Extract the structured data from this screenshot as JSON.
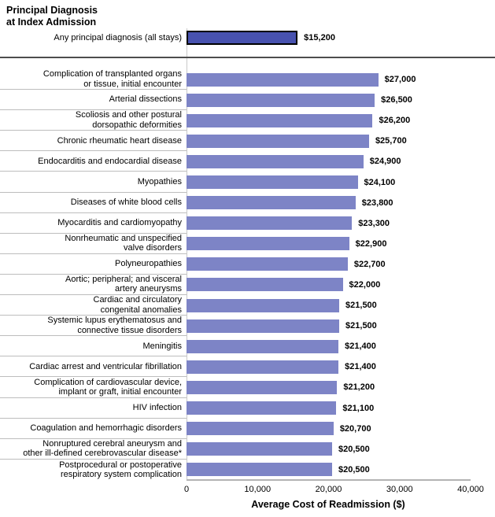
{
  "chart_data": {
    "type": "bar",
    "orientation": "horizontal",
    "title": "Principal Diagnosis at Index Admission",
    "title_lines": [
      "Principal Diagnosis",
      "at Index Admission"
    ],
    "xlabel": "Average Cost of Readmission ($)",
    "xlim": [
      0,
      40000
    ],
    "x_tick_labels": [
      "0",
      "10,000",
      "20,000",
      "30,000",
      "40,000"
    ],
    "grid": false,
    "legend": "none",
    "bar_color": "#7D84C6",
    "reference_bar": {
      "label": "Any principal diagnosis (all stays)",
      "value": 15200,
      "value_label": "$15,200",
      "fill_color": "#4852AF",
      "border_color": "#000000"
    },
    "categories": [
      "Complication of transplanted organs or tissue, initial encounter",
      "Arterial dissections",
      "Scoliosis and other postural dorsopathic deformities",
      "Chronic rheumatic heart disease",
      "Endocarditis and endocardial disease",
      "Myopathies",
      "Diseases of white blood cells",
      "Myocarditis and cardiomyopathy",
      "Nonrheumatic and unspecified valve disorders",
      "Polyneuropathies",
      "Aortic; peripheral; and visceral artery aneurysms",
      "Cardiac and circulatory congenital anomalies",
      "Systemic lupus erythematosus and connective tissue disorders",
      "Meningitis",
      "Cardiac arrest and ventricular fibrillation",
      "Complication of cardiovascular device, implant or graft, initial encounter",
      "HIV infection",
      "Coagulation and hemorrhagic disorders",
      "Nonruptured cerebral aneurysm and other ill-defined cerebrovascular disease*",
      "Postprocedural or postoperative respiratory system complication"
    ],
    "values": [
      27000,
      26500,
      26200,
      25700,
      24900,
      24100,
      23800,
      23300,
      22900,
      22700,
      22000,
      21500,
      21500,
      21400,
      21400,
      21200,
      21100,
      20700,
      20500,
      20500
    ],
    "bars": [
      {
        "label_lines": [
          "Complication of transplanted organs",
          "or tissue, initial encounter"
        ],
        "value": 27000,
        "value_label": "$27,000"
      },
      {
        "label_lines": [
          "Arterial dissections"
        ],
        "value": 26500,
        "value_label": "$26,500"
      },
      {
        "label_lines": [
          "Scoliosis and other postural",
          "dorsopathic deformities"
        ],
        "value": 26200,
        "value_label": "$26,200"
      },
      {
        "label_lines": [
          "Chronic rheumatic heart disease"
        ],
        "value": 25700,
        "value_label": "$25,700"
      },
      {
        "label_lines": [
          "Endocarditis and endocardial disease"
        ],
        "value": 24900,
        "value_label": "$24,900"
      },
      {
        "label_lines": [
          "Myopathies"
        ],
        "value": 24100,
        "value_label": "$24,100"
      },
      {
        "label_lines": [
          "Diseases of white blood cells"
        ],
        "value": 23800,
        "value_label": "$23,800"
      },
      {
        "label_lines": [
          "Myocarditis and cardiomyopathy"
        ],
        "value": 23300,
        "value_label": "$23,300"
      },
      {
        "label_lines": [
          "Nonrheumatic and unspecified",
          "valve disorders"
        ],
        "value": 22900,
        "value_label": "$22,900"
      },
      {
        "label_lines": [
          "Polyneuropathies"
        ],
        "value": 22700,
        "value_label": "$22,700"
      },
      {
        "label_lines": [
          "Aortic; peripheral; and visceral",
          "artery aneurysms"
        ],
        "value": 22000,
        "value_label": "$22,000"
      },
      {
        "label_lines": [
          "Cardiac and circulatory",
          "congenital anomalies"
        ],
        "value": 21500,
        "value_label": "$21,500"
      },
      {
        "label_lines": [
          "Systemic lupus erythematosus and",
          "connective tissue disorders"
        ],
        "value": 21500,
        "value_label": "$21,500"
      },
      {
        "label_lines": [
          "Meningitis"
        ],
        "value": 21400,
        "value_label": "$21,400"
      },
      {
        "label_lines": [
          "Cardiac arrest and ventricular fibrillation"
        ],
        "value": 21400,
        "value_label": "$21,400"
      },
      {
        "label_lines": [
          "Complication of cardiovascular device,",
          "implant or graft, initial encounter"
        ],
        "value": 21200,
        "value_label": "$21,200"
      },
      {
        "label_lines": [
          "HIV infection"
        ],
        "value": 21100,
        "value_label": "$21,100"
      },
      {
        "label_lines": [
          "Coagulation and hemorrhagic disorders"
        ],
        "value": 20700,
        "value_label": "$20,700"
      },
      {
        "label_lines": [
          "Nonruptured cerebral aneurysm and",
          "other ill-defined cerebrovascular disease*"
        ],
        "value": 20500,
        "value_label": "$20,500"
      },
      {
        "label_lines": [
          "Postprocedural or postoperative",
          "respiratory system complication"
        ],
        "value": 20500,
        "value_label": "$20,500"
      }
    ]
  }
}
